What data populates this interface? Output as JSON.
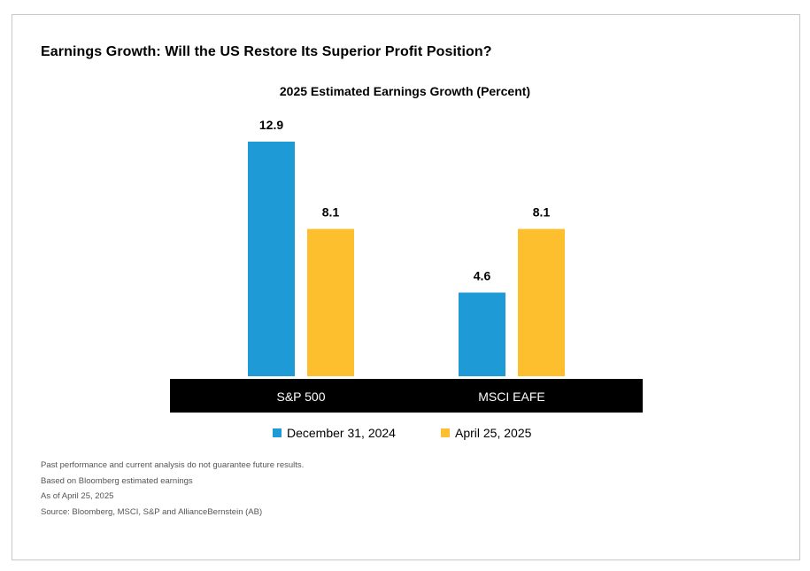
{
  "title": "Earnings Growth: Will the US Restore Its Superior Profit Position?",
  "colors": {
    "dec2024": "#1e9bd7",
    "apr2025": "#fdbf2d",
    "axis_band": "#000000",
    "axis_text": "#ffffff"
  },
  "chart_data": {
    "type": "bar",
    "title": "2025 Estimated Earnings Growth  (Percent)",
    "categories": [
      "S&P 500",
      "MSCI EAFE"
    ],
    "series": [
      {
        "name": "December 31, 2024",
        "values": [
          12.9,
          4.6
        ]
      },
      {
        "name": "April 25, 2025",
        "values": [
          8.1,
          8.1
        ]
      }
    ],
    "data_labels": [
      [
        "12.9",
        "4.6"
      ],
      [
        "8.1",
        "8.1"
      ]
    ],
    "ylim": [
      0,
      12.9
    ],
    "grid": false,
    "legend": "bottom"
  },
  "notes": [
    "Past performance and current analysis do not guarantee future results.",
    "Based on Bloomberg estimated earnings",
    "As of April 25, 2025",
    "Source: Bloomberg, MSCI, S&P and AllianceBernstein (AB)"
  ]
}
